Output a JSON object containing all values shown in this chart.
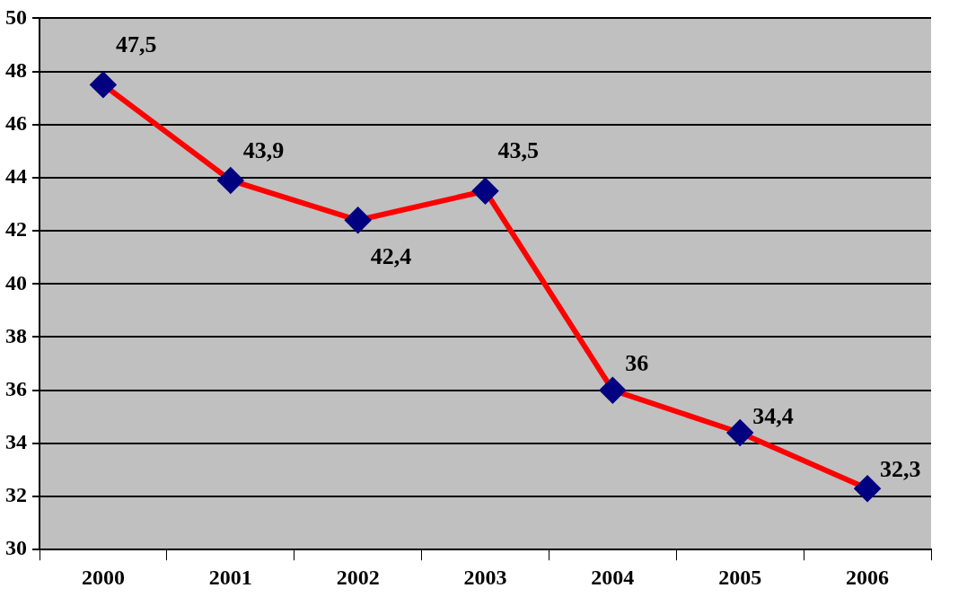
{
  "chart_data": {
    "type": "line",
    "categories": [
      "2000",
      "2001",
      "2002",
      "2003",
      "2004",
      "2005",
      "2006"
    ],
    "series": [
      {
        "color": "#ff0000",
        "colors": [
          "#000080",
          "#000080",
          "#000080",
          "#000080",
          "#000080",
          "#000080",
          "#000080"
        ],
        "values": [
          47.5,
          43.9,
          42.4,
          43.5,
          36,
          34.4,
          32.3
        ],
        "value_labels": [
          "47,5",
          "43,9",
          "42,4",
          "43,5",
          "36",
          "34,4",
          "32,3"
        ]
      }
    ],
    "ylim": [
      30,
      50
    ],
    "yticks": [
      30,
      32,
      34,
      36,
      38,
      40,
      42,
      44,
      46,
      48,
      50
    ],
    "grid": "y",
    "legend": false,
    "marker": "diamond",
    "line_style": "solid"
  }
}
